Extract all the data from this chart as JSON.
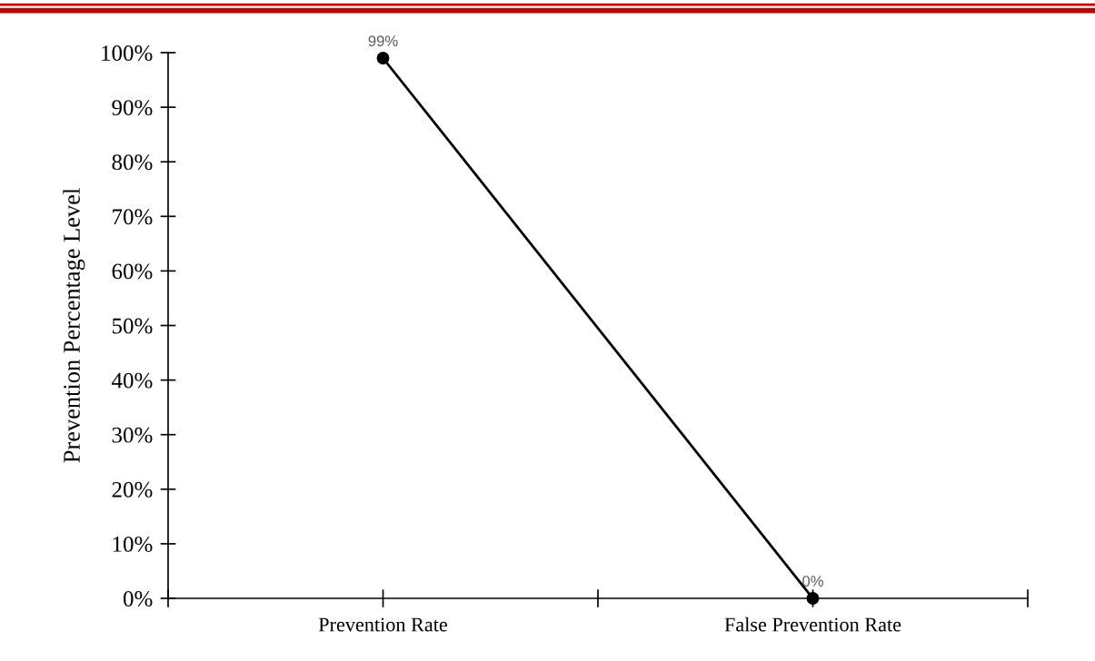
{
  "chart_data": {
    "type": "line",
    "ylabel": "Prevention Percentage Level",
    "categories": [
      "Prevention Rate",
      "False Prevention Rate"
    ],
    "series": [
      {
        "color": "#000000",
        "values": [
          99,
          0
        ],
        "value_labels": [
          "99%",
          "0%"
        ]
      }
    ],
    "ylim": [
      0,
      100
    ],
    "yticks": [
      {
        "value": 0,
        "label": "0%"
      },
      {
        "value": 10,
        "label": "10%"
      },
      {
        "value": 20,
        "label": "20%"
      },
      {
        "value": 30,
        "label": "30%"
      },
      {
        "value": 40,
        "label": "40%"
      },
      {
        "value": 50,
        "label": "50%"
      },
      {
        "value": 60,
        "label": "60%"
      },
      {
        "value": 70,
        "label": "70%"
      },
      {
        "value": 80,
        "label": "80%"
      },
      {
        "value": 90,
        "label": "90%"
      },
      {
        "value": 100,
        "label": "100%"
      }
    ],
    "marker": "circle",
    "line_style": "solid",
    "grid": false,
    "legend": false
  }
}
